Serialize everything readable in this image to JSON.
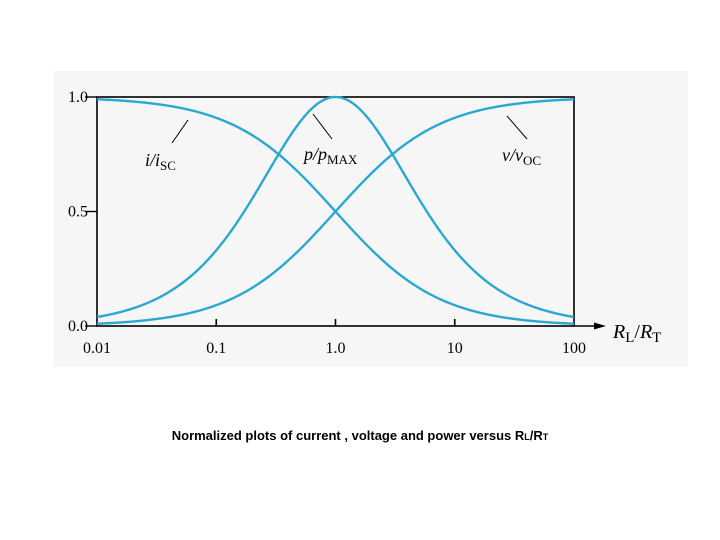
{
  "chart_data": {
    "type": "line",
    "x_scale": "log",
    "xlim": [
      0.01,
      100
    ],
    "ylim": [
      0,
      1
    ],
    "x_tick_labels": [
      "0.01",
      "0.1",
      "1.0",
      "10",
      "100"
    ],
    "x_tick_values": [
      0.01,
      0.1,
      1,
      10,
      100
    ],
    "y_tick_labels": [
      "0.0",
      "0.5",
      "1.0"
    ],
    "y_tick_values": [
      0,
      0.5,
      1
    ],
    "xlabel": {
      "main1": "R",
      "sub1": "L",
      "sep": "/",
      "main2": "R",
      "sub2": "T"
    },
    "series": [
      {
        "name": "i/isc",
        "label": {
          "main": "i/i",
          "sub": "SC"
        },
        "x": [
          0.01,
          0.03,
          0.1,
          0.3,
          1,
          3,
          10,
          30,
          100
        ],
        "y": [
          0.99,
          0.971,
          0.909,
          0.769,
          0.5,
          0.25,
          0.091,
          0.032,
          0.01
        ]
      },
      {
        "name": "p/pmax",
        "label": {
          "main": "p/p",
          "sub": "MAX"
        },
        "x": [
          0.01,
          0.03,
          0.1,
          0.3,
          1,
          3,
          10,
          30,
          100
        ],
        "y": [
          0.039,
          0.113,
          0.331,
          0.71,
          1.0,
          0.75,
          0.331,
          0.125,
          0.039
        ]
      },
      {
        "name": "v/voc",
        "label": {
          "main": "v/v",
          "sub": "OC"
        },
        "x": [
          0.01,
          0.03,
          0.1,
          0.3,
          1,
          3,
          10,
          30,
          100
        ],
        "y": [
          0.01,
          0.029,
          0.091,
          0.231,
          0.5,
          0.75,
          0.909,
          0.968,
          0.99
        ]
      }
    ],
    "line_color": "#2aa8d2",
    "grid": false
  },
  "caption": {
    "text": "Normalized plots of current , voltage and power versus R",
    "sub1": "L",
    "slash": "/R",
    "sub2": "T"
  }
}
